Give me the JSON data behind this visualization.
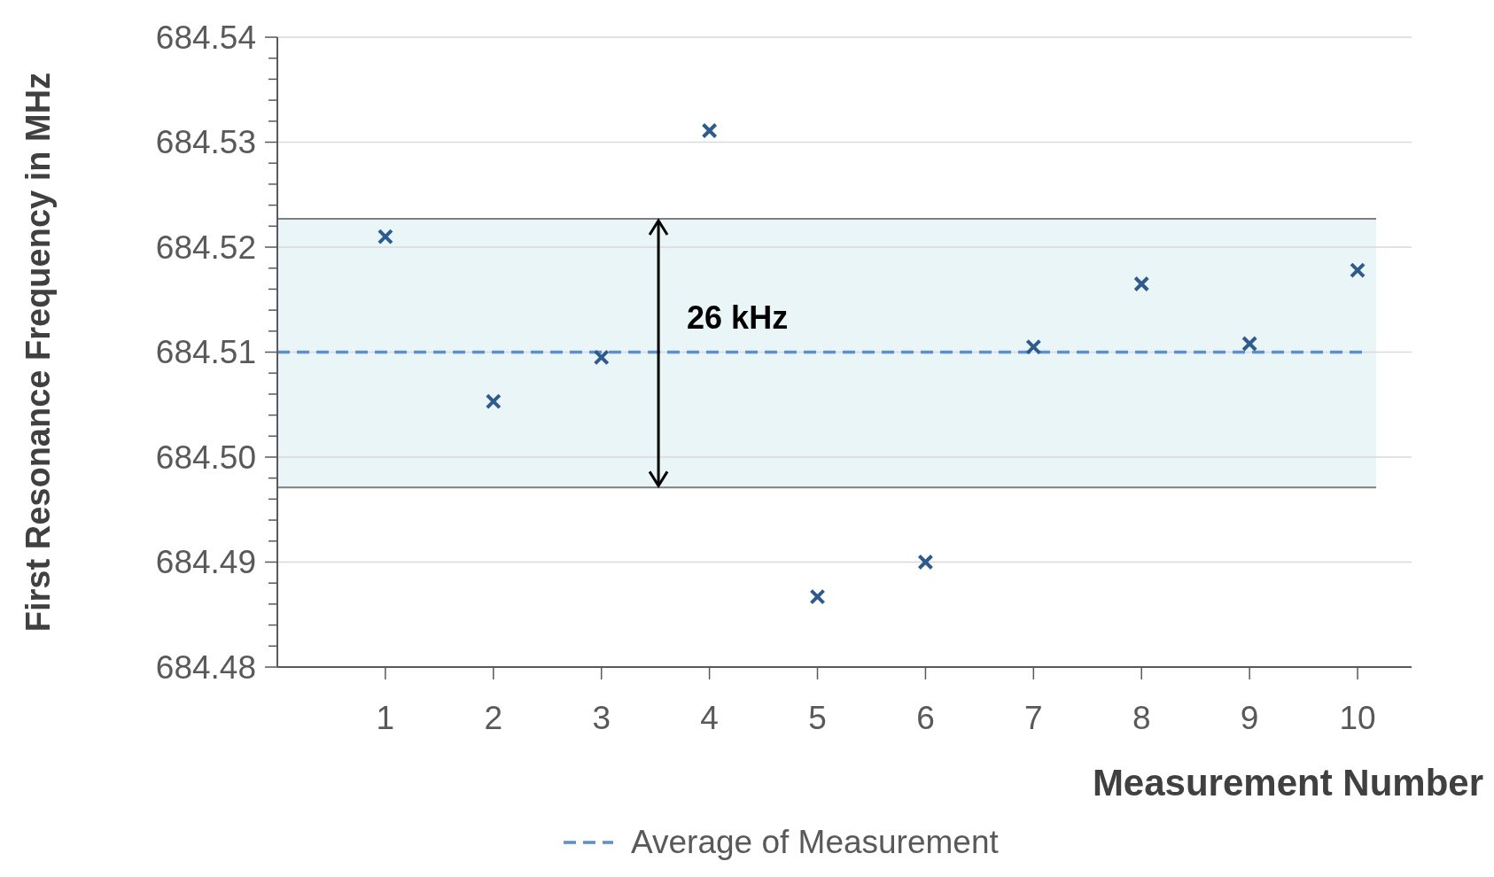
{
  "chart_data": {
    "type": "scatter",
    "xlabel": "Measurement Number",
    "ylabel": "First Resonance Frequency in MHz",
    "x": [
      1,
      2,
      3,
      4,
      5,
      6,
      7,
      8,
      9,
      10
    ],
    "series": [
      {
        "color": "#2f5b8c",
        "values": [
          684.521,
          684.5053,
          684.5095,
          684.5311,
          684.4867,
          684.49,
          684.5105,
          684.5165,
          684.5108,
          684.5178
        ]
      }
    ],
    "marker": "cross",
    "xlim": [
      0,
      10.5
    ],
    "xticks": [
      1,
      2,
      3,
      4,
      5,
      6,
      7,
      8,
      9,
      10
    ],
    "ylim": [
      684.48,
      684.54
    ],
    "yticks": [
      {
        "value": 684.48,
        "label": "684.48"
      },
      {
        "value": 684.482,
        "label": null
      },
      {
        "value": 684.484,
        "label": null
      },
      {
        "value": 684.486,
        "label": null
      },
      {
        "value": 684.488,
        "label": null
      },
      {
        "value": 684.49,
        "label": "684.49"
      },
      {
        "value": 684.492,
        "label": null
      },
      {
        "value": 684.494,
        "label": null
      },
      {
        "value": 684.496,
        "label": null
      },
      {
        "value": 684.498,
        "label": null
      },
      {
        "value": 684.5,
        "label": "684.50"
      },
      {
        "value": 684.502,
        "label": null
      },
      {
        "value": 684.504,
        "label": null
      },
      {
        "value": 684.506,
        "label": null
      },
      {
        "value": 684.508,
        "label": null
      },
      {
        "value": 684.51,
        "label": "684.51"
      },
      {
        "value": 684.512,
        "label": null
      },
      {
        "value": 684.514,
        "label": null
      },
      {
        "value": 684.516,
        "label": null
      },
      {
        "value": 684.518,
        "label": null
      },
      {
        "value": 684.52,
        "label": "684.52"
      },
      {
        "value": 684.522,
        "label": null
      },
      {
        "value": 684.524,
        "label": null
      },
      {
        "value": 684.526,
        "label": null
      },
      {
        "value": 684.528,
        "label": null
      },
      {
        "value": 684.53,
        "label": "684.53"
      },
      {
        "value": 684.532,
        "label": null
      },
      {
        "value": 684.534,
        "label": null
      },
      {
        "value": 684.536,
        "label": null
      },
      {
        "value": 684.538,
        "label": null
      },
      {
        "value": 684.54,
        "label": "684.54"
      }
    ],
    "grid": "y",
    "bands": [
      {
        "axis": "y",
        "from": 684.4971,
        "to": 684.5227,
        "color": "#eaf5f8"
      }
    ],
    "ref_lines": [
      {
        "axis": "y",
        "value": 684.51,
        "label": "Average of Measurement",
        "color": "#5b8fd0",
        "line_style": "dashed"
      },
      {
        "axis": "y",
        "value": 684.5227,
        "color": "#7f7f7f",
        "line_style": "solid"
      },
      {
        "axis": "y",
        "value": 684.4971,
        "color": "#7f7f7f",
        "line_style": "solid"
      }
    ],
    "annotations": [
      "26 kHz"
    ],
    "legend": "bottom"
  }
}
